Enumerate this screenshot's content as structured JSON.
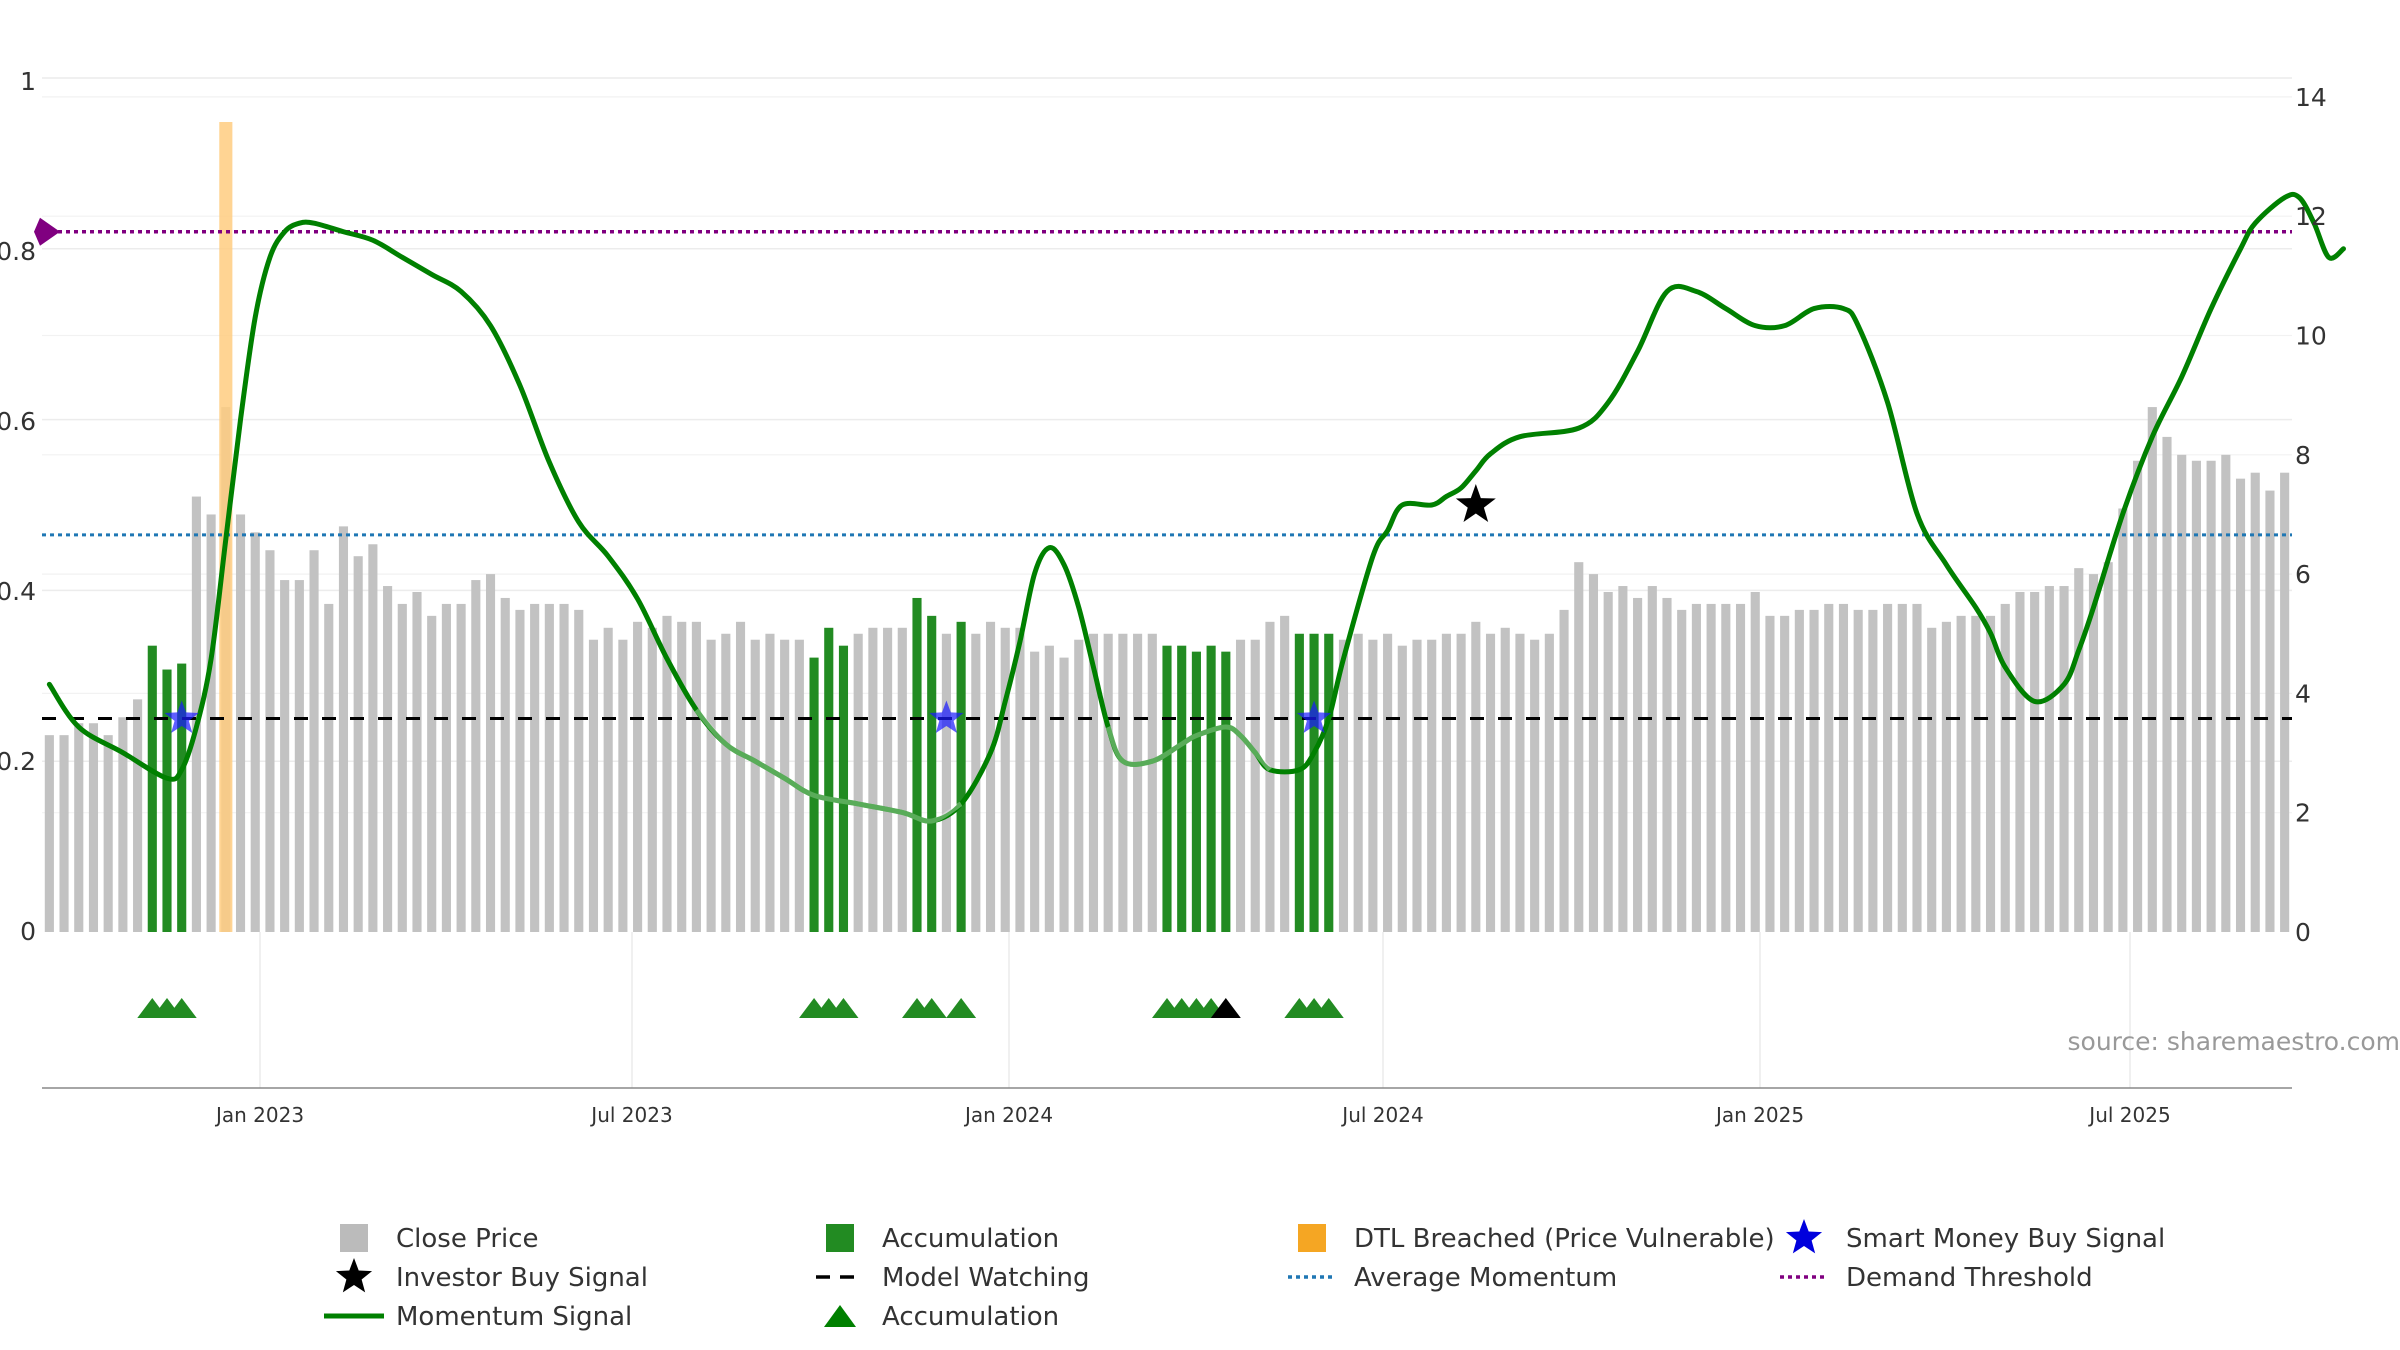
{
  "chart_data": {
    "type": "bar",
    "x_ticks": [
      "Jan 2023",
      "Jul 2023",
      "Jan 2024",
      "Jul 2024",
      "Jan 2025",
      "Jul 2025"
    ],
    "left_axis": {
      "ticks": [
        "0",
        "0.2",
        "0.4",
        "0.6",
        "0.8",
        "1"
      ],
      "range": [
        0,
        1
      ]
    },
    "right_axis": {
      "ticks": [
        "0",
        "2",
        "4",
        "6",
        "8",
        "10",
        "12",
        "14"
      ],
      "range": [
        0,
        14
      ]
    },
    "close_price": [
      3.3,
      3.3,
      3.5,
      3.5,
      3.3,
      3.6,
      3.9,
      4.8,
      4.4,
      4.5,
      7.3,
      7.0,
      8.8,
      7.0,
      6.7,
      6.4,
      5.9,
      5.9,
      6.4,
      5.5,
      6.8,
      6.3,
      6.5,
      5.8,
      5.5,
      5.7,
      5.3,
      5.5,
      5.5,
      5.9,
      6.0,
      5.6,
      5.4,
      5.5,
      5.5,
      5.5,
      5.4,
      4.9,
      5.1,
      4.9,
      5.2,
      5.1,
      5.3,
      5.2,
      5.2,
      4.9,
      5.0,
      5.2,
      4.9,
      5.0,
      4.9,
      4.9,
      4.6,
      5.1,
      4.8,
      5.0,
      5.1,
      5.1,
      5.1,
      5.6,
      5.3,
      5.0,
      5.2,
      5.0,
      5.2,
      5.1,
      5.1,
      4.7,
      4.8,
      4.6,
      4.9,
      5.0,
      5.0,
      5.0,
      5.0,
      5.0,
      4.8,
      4.8,
      4.7,
      4.8,
      4.7,
      4.9,
      4.9,
      5.2,
      5.3,
      5.0,
      5.0,
      5.0,
      4.9,
      5.0,
      4.9,
      5.0,
      4.8,
      4.9,
      4.9,
      5.0,
      5.0,
      5.2,
      5.0,
      5.1,
      5.0,
      4.9,
      5.0,
      5.4,
      6.2,
      6.0,
      5.7,
      5.8,
      5.6,
      5.8,
      5.6,
      5.4,
      5.5,
      5.5,
      5.5,
      5.5,
      5.7,
      5.3,
      5.3,
      5.4,
      5.4,
      5.5,
      5.5,
      5.4,
      5.4,
      5.5,
      5.5,
      5.5,
      5.1,
      5.2,
      5.3,
      5.3,
      5.3,
      5.5,
      5.7,
      5.7,
      5.8,
      5.8,
      6.1,
      6.0,
      6.2,
      7.1,
      7.9,
      8.8,
      8.3,
      8.0,
      7.9,
      7.9,
      8.0,
      7.6,
      7.7,
      7.4,
      7.7
    ],
    "accumulation_bars": [
      7,
      8,
      9,
      52,
      53,
      54,
      59,
      60,
      62,
      76,
      77,
      78,
      79,
      80,
      85,
      86,
      87
    ],
    "dtl_breached_bar": 12,
    "momentum_signal": [
      [
        0,
        0.29
      ],
      [
        2,
        0.24
      ],
      [
        5,
        0.21
      ],
      [
        8,
        0.18
      ],
      [
        9,
        0.19
      ],
      [
        10,
        0.24
      ],
      [
        11,
        0.32
      ],
      [
        12,
        0.46
      ],
      [
        13,
        0.6
      ],
      [
        14,
        0.72
      ],
      [
        15,
        0.79
      ],
      [
        16,
        0.82
      ],
      [
        17,
        0.83
      ],
      [
        18,
        0.83
      ],
      [
        20,
        0.82
      ],
      [
        22,
        0.81
      ],
      [
        24,
        0.79
      ],
      [
        26,
        0.77
      ],
      [
        28,
        0.75
      ],
      [
        30,
        0.71
      ],
      [
        32,
        0.64
      ],
      [
        34,
        0.55
      ],
      [
        36,
        0.48
      ],
      [
        38,
        0.44
      ],
      [
        40,
        0.39
      ],
      [
        42,
        0.32
      ],
      [
        44,
        0.26
      ],
      [
        46,
        0.22
      ],
      [
        48,
        0.2
      ],
      [
        50,
        0.18
      ],
      [
        52,
        0.16
      ],
      [
        55,
        0.15
      ],
      [
        58,
        0.14
      ],
      [
        60,
        0.13
      ],
      [
        62,
        0.15
      ],
      [
        64,
        0.21
      ],
      [
        65,
        0.27
      ],
      [
        66,
        0.34
      ],
      [
        67,
        0.42
      ],
      [
        68,
        0.45
      ],
      [
        69,
        0.43
      ],
      [
        70,
        0.38
      ],
      [
        71,
        0.31
      ],
      [
        72,
        0.24
      ],
      [
        73,
        0.2
      ],
      [
        75,
        0.2
      ],
      [
        77,
        0.22
      ],
      [
        78,
        0.23
      ],
      [
        80,
        0.24
      ],
      [
        81,
        0.23
      ],
      [
        82,
        0.21
      ],
      [
        83,
        0.19
      ],
      [
        85,
        0.19
      ],
      [
        86,
        0.21
      ],
      [
        87,
        0.25
      ],
      [
        88,
        0.32
      ],
      [
        90,
        0.44
      ],
      [
        91,
        0.47
      ],
      [
        92,
        0.5
      ],
      [
        94,
        0.5
      ],
      [
        95,
        0.51
      ],
      [
        96,
        0.52
      ],
      [
        97,
        0.54
      ],
      [
        98,
        0.56
      ],
      [
        100,
        0.58
      ],
      [
        104,
        0.59
      ],
      [
        106,
        0.62
      ],
      [
        108,
        0.68
      ],
      [
        110,
        0.75
      ],
      [
        112,
        0.75
      ],
      [
        114,
        0.73
      ],
      [
        116,
        0.71
      ],
      [
        118,
        0.71
      ],
      [
        120,
        0.73
      ],
      [
        122,
        0.73
      ],
      [
        123,
        0.71
      ],
      [
        125,
        0.62
      ],
      [
        127,
        0.49
      ],
      [
        129,
        0.43
      ],
      [
        131,
        0.38
      ],
      [
        132,
        0.35
      ],
      [
        133,
        0.31
      ],
      [
        135,
        0.27
      ],
      [
        137,
        0.29
      ],
      [
        138,
        0.33
      ],
      [
        139,
        0.38
      ],
      [
        141,
        0.49
      ],
      [
        143,
        0.58
      ],
      [
        145,
        0.65
      ],
      [
        147,
        0.73
      ],
      [
        149,
        0.8
      ],
      [
        150,
        0.83
      ],
      [
        152,
        0.86
      ],
      [
        153,
        0.86
      ],
      [
        154,
        0.83
      ],
      [
        155,
        0.79
      ],
      [
        156,
        0.8
      ]
    ],
    "momentum_faded_ranges": [
      [
        44,
        62
      ],
      [
        72,
        84
      ]
    ],
    "model_watching_level": 0.25,
    "average_momentum_level": 0.465,
    "demand_threshold_level": 0.82,
    "smart_money_buy_signals": [
      [
        9,
        0.25
      ],
      [
        61,
        0.25
      ],
      [
        86,
        0.25
      ]
    ],
    "investor_buy_signals": [
      [
        97,
        0.5
      ]
    ],
    "accumulation_markers": [
      7,
      8,
      9,
      52,
      53,
      54,
      59,
      60,
      62,
      76,
      77,
      78,
      79,
      85,
      86,
      87
    ],
    "black_markers": [
      80
    ],
    "legend": [
      {
        "label": "Close Price",
        "symbol": "square",
        "color": "#bbbbbb"
      },
      {
        "label": "Accumulation",
        "symbol": "square",
        "color": "#228b22"
      },
      {
        "label": "DTL Breached (Price Vulnerable)",
        "symbol": "square",
        "color": "#f5a623"
      },
      {
        "label": "Smart Money Buy Signal",
        "symbol": "star",
        "color": "#0000dd"
      },
      {
        "label": "Investor Buy Signal",
        "symbol": "star",
        "color": "#000000"
      },
      {
        "label": "Model Watching",
        "symbol": "dash",
        "color": "#000000"
      },
      {
        "label": "Average Momentum",
        "symbol": "dot",
        "color": "#1f77b4"
      },
      {
        "label": "Demand Threshold",
        "symbol": "dot",
        "color": "#800080"
      },
      {
        "label": "Momentum Signal",
        "symbol": "line",
        "color": "#008000"
      },
      {
        "label": "Accumulation",
        "symbol": "triangle",
        "color": "#008000"
      }
    ],
    "legend_placement": "bottom",
    "grid": true,
    "colors": {
      "close_price": "#c2c2c2",
      "accumulation": "#228b22",
      "dtl": "#ffcc80",
      "momentum": "#008000",
      "average_momentum": "#1f77b4",
      "demand_threshold": "#800080",
      "smart_money": "#1a1aff",
      "investor": "#000000",
      "model_watching": "#000000"
    }
  },
  "source": "source: sharemaestro.com"
}
